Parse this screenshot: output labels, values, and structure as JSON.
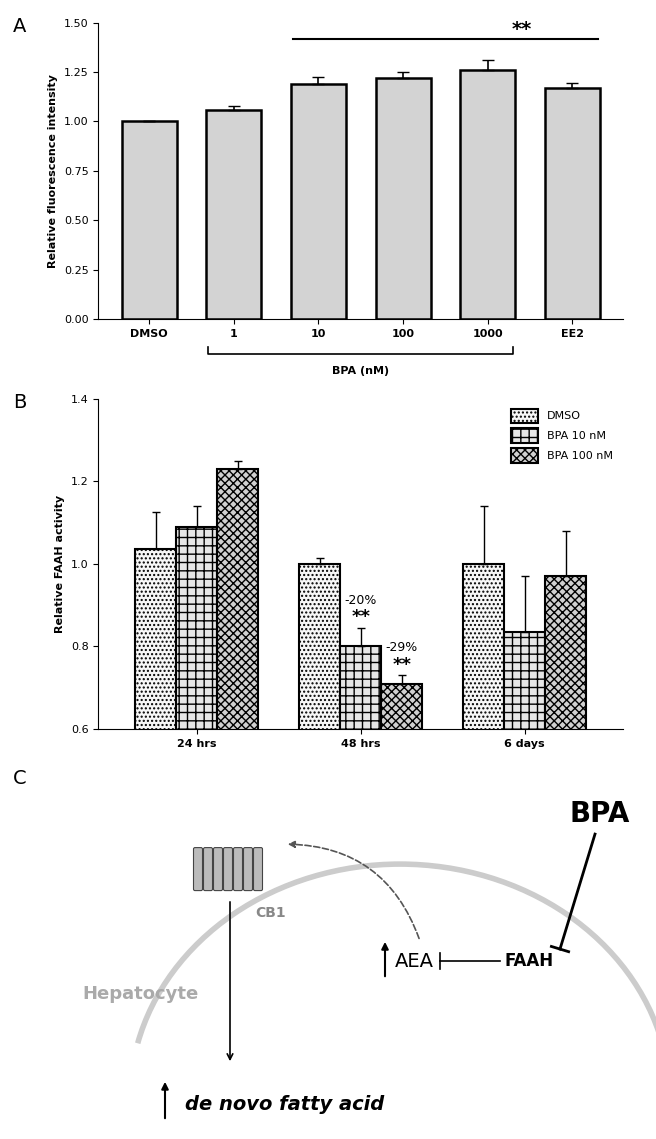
{
  "chart_data": [
    {
      "type": "bar",
      "label": "A",
      "categories": [
        "DMSO",
        "1",
        "10",
        "100",
        "1000",
        "EE2"
      ],
      "values": [
        1.0,
        1.06,
        1.19,
        1.22,
        1.26,
        1.17
      ],
      "error": [
        0.0,
        0.02,
        0.035,
        0.03,
        0.05,
        0.025
      ],
      "color": "#d3d3d3",
      "y_label": "Relative fluorescence intensity",
      "ylim": [
        0,
        1.5
      ],
      "yticks": [
        {
          "value": 0,
          "label": "0.00"
        },
        {
          "value": 0.25,
          "label": "0.25"
        },
        {
          "value": 0.5,
          "label": "0.50"
        },
        {
          "value": 0.75,
          "label": "0.75"
        },
        {
          "value": 1.0,
          "label": "1.00"
        },
        {
          "value": 1.25,
          "label": "1.25"
        },
        {
          "value": 1.5,
          "label": "1.50"
        }
      ],
      "groups": [
        {
          "label": "BPA (nM)",
          "from": "1",
          "to": "1000"
        }
      ],
      "annotations": [
        {
          "text": "**",
          "from": "10",
          "to": "EE2",
          "y": 1.42
        }
      ]
    },
    {
      "type": "bar",
      "label": "B",
      "categories": [
        "24 hrs",
        "48 hrs",
        "6 days"
      ],
      "series": [
        {
          "name": "DMSO",
          "color": "#f7f7f7",
          "values": [
            1.035,
            1.0,
            1.0
          ],
          "error": [
            0.09,
            0.015,
            0.14
          ]
        },
        {
          "name": "BPA 10 nM",
          "color": "#e6e6e6",
          "values": [
            1.09,
            0.8,
            0.835
          ],
          "error": [
            0.05,
            0.045,
            0.135
          ]
        },
        {
          "name": "BPA 100 nM",
          "color": "#d0d0d0",
          "values": [
            1.23,
            0.71,
            0.97
          ],
          "error": [
            0.02,
            0.02,
            0.11
          ]
        }
      ],
      "y_label": "Relative FAAH activity",
      "ylim": [
        0.6,
        1.4
      ],
      "yticks": [
        {
          "value": 0.6,
          "label": "0.6"
        },
        {
          "value": 0.8,
          "label": "0.8"
        },
        {
          "value": 1.0,
          "label": "1.0"
        },
        {
          "value": 1.2,
          "label": "1.2"
        },
        {
          "value": 1.4,
          "label": "1.4"
        }
      ],
      "legend": "upper right",
      "annotations": [
        {
          "text": "**",
          "series": "BPA 10 nM",
          "category": "48 hrs"
        },
        {
          "text": "-20%",
          "series": "BPA 10 nM",
          "category": "48 hrs"
        },
        {
          "text": "**",
          "series": "BPA 100 nM",
          "category": "48 hrs"
        },
        {
          "text": "-29%",
          "series": "BPA 100 nM",
          "category": "48 hrs"
        }
      ]
    }
  ],
  "diagram": {
    "label": "C",
    "nodes": {
      "bpa": "BPA",
      "receptor": "CB1",
      "cell": "Hepatocyte",
      "ligand": "AEA",
      "enzyme": "FAAH",
      "output": "de novo fatty acid"
    }
  }
}
